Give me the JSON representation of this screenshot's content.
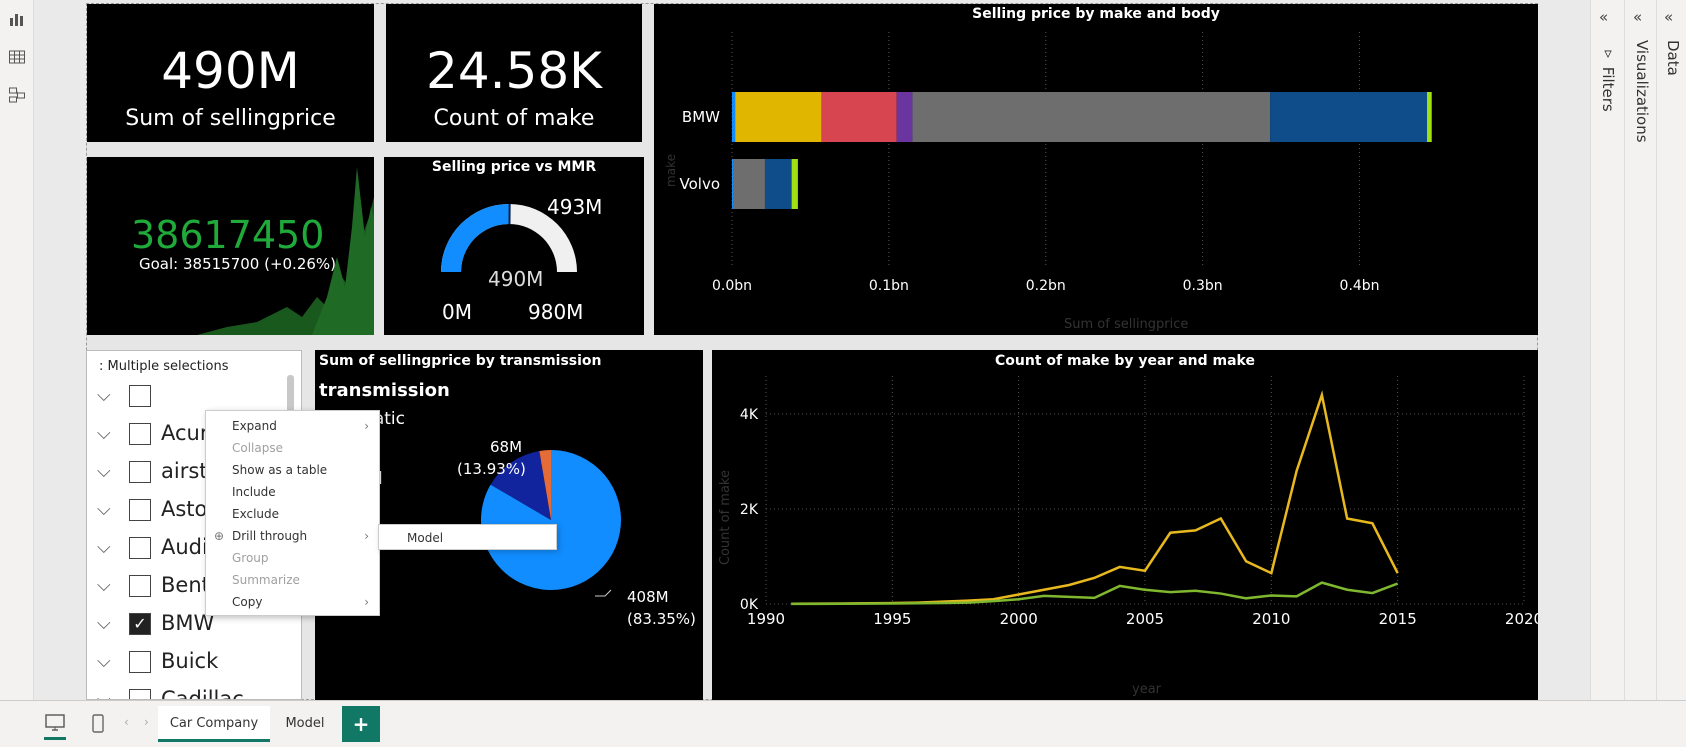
{
  "left_rail": {
    "icons": [
      "report-view-icon",
      "table-view-icon",
      "model-view-icon"
    ]
  },
  "kpis": [
    {
      "value": "490M",
      "label": "Sum of sellingprice"
    },
    {
      "value": "24.58K",
      "label": "Count of make"
    }
  ],
  "goal_card": {
    "value": "38617450",
    "goal": "Goal: 38515700 (+0.26%)",
    "colors": {
      "value": "#1faa3a",
      "area": "#1b5e20"
    }
  },
  "gauge": {
    "title": "Selling price vs MMR",
    "value_label": "490M",
    "target_label": "493M",
    "min_label": "0M",
    "max_label": "980M",
    "chart_data": {
      "type": "gauge",
      "value": 490,
      "target": 493,
      "min": 0,
      "max": 980
    }
  },
  "bar_chart": {
    "title": "Selling price by make and body",
    "ylabel": "make",
    "xlabel": "Sum of sellingprice",
    "ticks": [
      "0.0bn",
      "0.1bn",
      "0.2bn",
      "0.3bn",
      "0.4bn"
    ],
    "chart_data": {
      "type": "bar",
      "orientation": "horizontal",
      "stacked": true,
      "categories": [
        "BMW",
        "Volvo"
      ],
      "xlim": [
        0,
        0.45
      ],
      "segments": [
        {
          "color": "#118dff",
          "values": [
            0.002,
            0.001
          ]
        },
        {
          "color": "#e1b600",
          "values": [
            0.055,
            0.0
          ]
        },
        {
          "color": "#d64550",
          "values": [
            0.048,
            0.0
          ]
        },
        {
          "color": "#6b35a0",
          "values": [
            0.01,
            0.0
          ]
        },
        {
          "color": "#6e6e6e",
          "values": [
            0.228,
            0.02
          ]
        },
        {
          "color": "#0f4c8a",
          "values": [
            0.1,
            0.017
          ]
        },
        {
          "color": "#a0e010",
          "values": [
            0.003,
            0.004
          ]
        }
      ]
    }
  },
  "pie_chart": {
    "title": "Sum of sellingprice by transmission",
    "legend_title": "transmission",
    "legend_items": [
      "automatic",
      "manual"
    ],
    "label_top": "68M",
    "label_top_pct": "(13.93%)",
    "label_bottom": "408M",
    "label_bottom_pct": "(83.35%)",
    "chart_data": {
      "type": "pie",
      "slices": [
        {
          "name": "automatic",
          "value": 408,
          "color": "#118dff"
        },
        {
          "name": "manual",
          "value": 68,
          "color": "#12239e"
        },
        {
          "value": 13,
          "color": "#e66c37"
        }
      ]
    }
  },
  "line_chart": {
    "title": "Count of make by year and make",
    "ylabel": "Count of make",
    "xlabel": "year",
    "yticks": [
      "0K",
      "2K",
      "4K"
    ],
    "xticks": [
      "1990",
      "1995",
      "2000",
      "2005",
      "2010",
      "2015",
      "2020"
    ],
    "chart_data": {
      "type": "line",
      "xlim": [
        1990,
        2020
      ],
      "ylim": [
        0,
        4800
      ],
      "series": [
        {
          "color": "#e8b81f",
          "x": [
            1991,
            1992,
            1993,
            1994,
            1995,
            1996,
            1997,
            1998,
            1999,
            2000,
            2001,
            2002,
            2003,
            2004,
            2005,
            2006,
            2007,
            2008,
            2009,
            2010,
            2011,
            2012,
            2013,
            2014,
            2015
          ],
          "y": [
            5,
            8,
            10,
            15,
            20,
            30,
            50,
            70,
            100,
            200,
            300,
            400,
            550,
            780,
            700,
            1500,
            1550,
            1800,
            900,
            650,
            2800,
            4400,
            1800,
            1700,
            650
          ]
        },
        {
          "color": "#7fb82e",
          "x": [
            1991,
            1992,
            1993,
            1994,
            1995,
            1996,
            1997,
            1998,
            1999,
            2000,
            2001,
            2002,
            2003,
            2004,
            2005,
            2006,
            2007,
            2008,
            2009,
            2010,
            2011,
            2012,
            2013,
            2014,
            2015
          ],
          "y": [
            2,
            3,
            5,
            8,
            10,
            15,
            20,
            30,
            60,
            100,
            170,
            150,
            130,
            380,
            300,
            250,
            280,
            220,
            120,
            180,
            160,
            450,
            300,
            230,
            430
          ]
        }
      ]
    }
  },
  "slicer": {
    "header": ": Multiple selections",
    "items": [
      {
        "label": "",
        "checked": false
      },
      {
        "label": "Acura",
        "checked": false
      },
      {
        "label": "airstream",
        "checked": false
      },
      {
        "label": "Aston Martin",
        "checked": false
      },
      {
        "label": "Audi",
        "checked": false
      },
      {
        "label": "Bentley",
        "checked": false
      },
      {
        "label": "BMW",
        "checked": true
      },
      {
        "label": "Buick",
        "checked": false
      },
      {
        "label": "Cadillac",
        "checked": false
      }
    ]
  },
  "context_menu": {
    "items": [
      {
        "label": "Expand",
        "disabled": false,
        "submenu": true
      },
      {
        "label": "Collapse",
        "disabled": true,
        "submenu": false
      },
      {
        "label": "Show as a table",
        "disabled": false,
        "submenu": false
      },
      {
        "label": "Include",
        "disabled": false,
        "submenu": false
      },
      {
        "label": "Exclude",
        "disabled": false,
        "submenu": false
      },
      {
        "label": "Drill through",
        "disabled": false,
        "submenu": true
      },
      {
        "label": "Group",
        "disabled": true,
        "submenu": false
      },
      {
        "label": "Summarize",
        "disabled": true,
        "submenu": false
      },
      {
        "label": "Copy",
        "disabled": false,
        "submenu": true
      }
    ],
    "submenu_item": "Model"
  },
  "right_panels": {
    "filters": "Filters",
    "visualizations": "Visualizations",
    "data": "Data"
  },
  "tabs": {
    "active": "Car Company",
    "other": "Model",
    "add": "+"
  }
}
